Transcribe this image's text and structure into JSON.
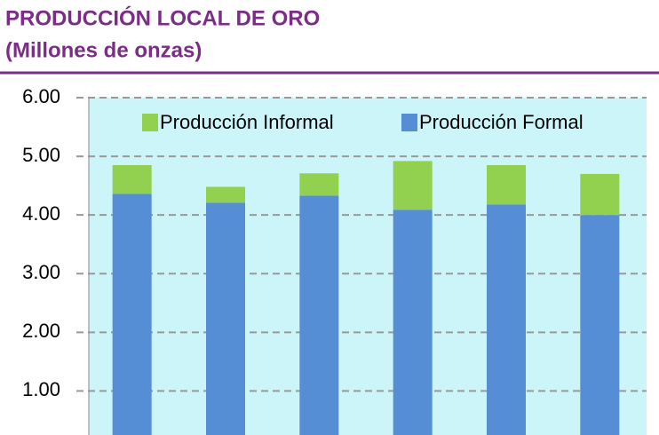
{
  "chart_data": {
    "type": "stacked_bar",
    "title": "PRODUCCIÓN LOCAL DE ORO",
    "subtitle": "(Millones de onzas)",
    "categories": [
      null,
      null,
      null,
      null,
      null,
      null
    ],
    "series": [
      {
        "name": "Producción Formal",
        "color": "#558ed5",
        "values": [
          4.36,
          4.21,
          4.33,
          4.09,
          4.18,
          4.0
        ]
      },
      {
        "name": "Producción Informal",
        "color": "#92d050",
        "values": [
          0.49,
          0.27,
          0.38,
          0.83,
          0.67,
          0.7
        ]
      }
    ],
    "ylim": [
      0.25,
      6
    ],
    "yticks": [
      {
        "value": 1,
        "label": "1.00"
      },
      {
        "value": 2,
        "label": "2.00"
      },
      {
        "value": 3,
        "label": "3.00"
      },
      {
        "value": 4,
        "label": "4.00"
      },
      {
        "value": 5,
        "label": "5.00"
      },
      {
        "value": 6,
        "label": "6.00"
      }
    ],
    "grid": true,
    "legend": "top"
  }
}
